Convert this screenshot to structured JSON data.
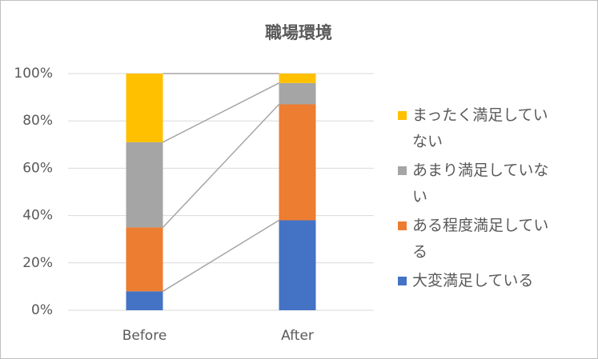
{
  "chart_data": {
    "type": "stacked_bar",
    "title": "職場環境",
    "categories": [
      "Before",
      "After"
    ],
    "series": [
      {
        "name": "大変満足している",
        "color": "#4472c4",
        "values": [
          8,
          38
        ]
      },
      {
        "name": "ある程度満足している",
        "color": "#ed7d31",
        "values": [
          27,
          49
        ]
      },
      {
        "name": "あまり満足していない",
        "color": "#a5a5a5",
        "values": [
          36,
          9
        ]
      },
      {
        "name": "まったく満足していない",
        "color": "#ffc000",
        "values": [
          29,
          4
        ]
      }
    ],
    "ylim": [
      0,
      100
    ],
    "yticks": [
      {
        "value": 0,
        "label": "0%"
      },
      {
        "value": 20,
        "label": "20%"
      },
      {
        "value": 40,
        "label": "40%"
      },
      {
        "value": 60,
        "label": "60%"
      },
      {
        "value": 80,
        "label": "80%"
      },
      {
        "value": 100,
        "label": "100%"
      }
    ],
    "grid": true,
    "legend": "right"
  }
}
